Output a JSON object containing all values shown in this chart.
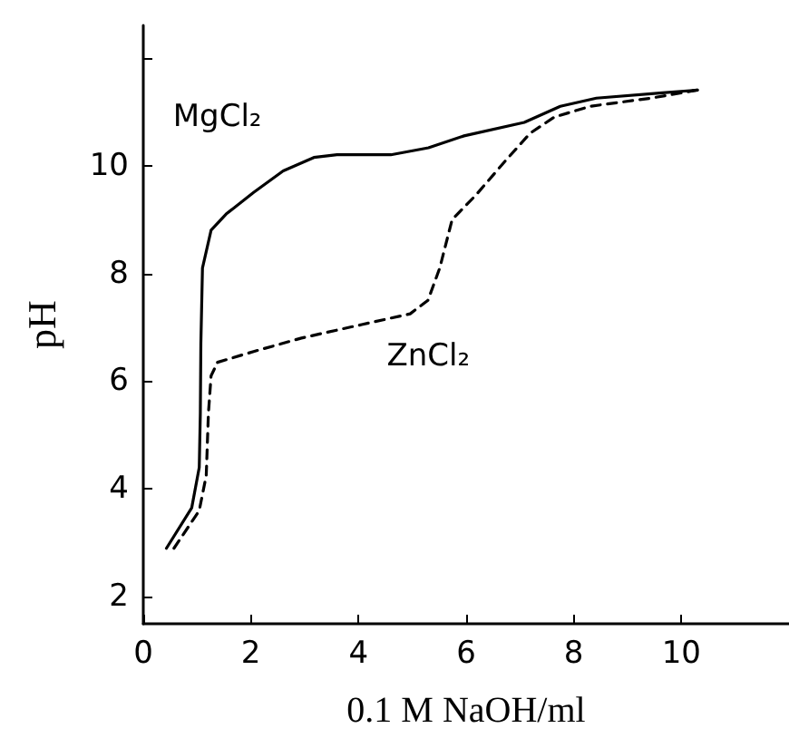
{
  "chart_data": {
    "type": "line",
    "xlabel": "0.1 M NaOH/ml",
    "ylabel": "pH",
    "xlim": [
      0,
      12
    ],
    "ylim": [
      1.5,
      12.6
    ],
    "xticks": [
      0,
      2,
      4,
      6,
      8,
      10
    ],
    "yticks": [
      2,
      4,
      6,
      8,
      10,
      {
        "value": 12,
        "label": null
      }
    ],
    "grid": false,
    "legend": false,
    "marker": "none",
    "series": [
      {
        "name": "MgCl₂",
        "color": "#000000",
        "line_style": "solid",
        "x": [
          0.43,
          0.9,
          1.04,
          1.06,
          1.07,
          1.1,
          1.26,
          1.54,
          2.05,
          2.6,
          3.17,
          3.6,
          4.6,
          5.3,
          5.96,
          7.08,
          7.75,
          8.42,
          9.65,
          10.3
        ],
        "values": [
          2.9,
          3.65,
          4.4,
          5.4,
          6.7,
          8.1,
          8.8,
          9.1,
          9.5,
          9.9,
          10.15,
          10.2,
          10.2,
          10.33,
          10.55,
          10.8,
          11.1,
          11.25,
          11.35,
          11.4
        ]
      },
      {
        "name": "ZnCl₂",
        "color": "#000000",
        "line_style": "dashed",
        "x": [
          0.57,
          1.04,
          1.17,
          1.21,
          1.26,
          1.38,
          2.05,
          2.94,
          4.06,
          4.96,
          5.29,
          5.51,
          5.74,
          6.18,
          6.74,
          7.19,
          7.64,
          8.31,
          9.43,
          10.3
        ],
        "values": [
          2.9,
          3.6,
          4.25,
          5.4,
          6.1,
          6.35,
          6.55,
          6.8,
          7.05,
          7.25,
          7.5,
          8.1,
          9.0,
          9.45,
          10.1,
          10.6,
          10.9,
          11.1,
          11.25,
          11.4
        ]
      }
    ]
  }
}
